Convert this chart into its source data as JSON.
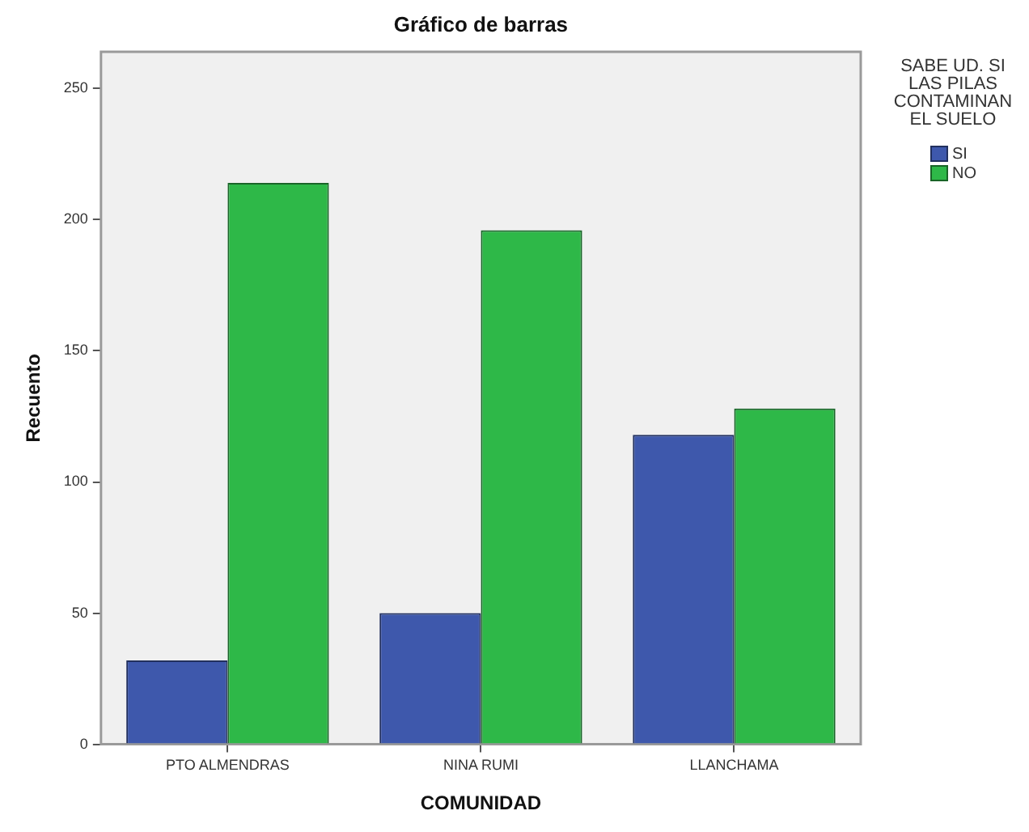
{
  "chart_data": {
    "type": "bar",
    "title": "Gráfico de barras",
    "xlabel": "COMUNIDAD",
    "ylabel": "Recuento",
    "legend_title": "SABE UD. SI LAS PILAS CONTAMINAN EL SUELO",
    "categories": [
      "PTO ALMENDRAS",
      "NINA RUMI",
      "LLANCHAMA"
    ],
    "series": [
      {
        "name": "SI",
        "color": "#3e58ac",
        "values": [
          32,
          50,
          118
        ]
      },
      {
        "name": "NO",
        "color": "#2eb848",
        "values": [
          214,
          196,
          128
        ]
      }
    ],
    "ylim": [
      0,
      264
    ],
    "yticks": [
      0,
      50,
      100,
      150,
      200,
      250
    ],
    "legend": "top right"
  }
}
